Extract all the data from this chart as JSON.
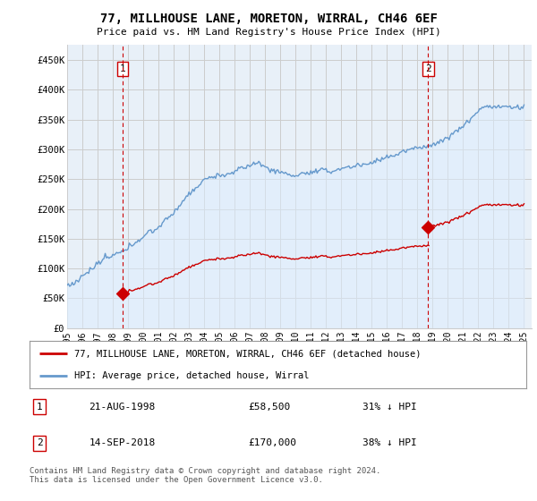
{
  "title": "77, MILLHOUSE LANE, MORETON, WIRRAL, CH46 6EF",
  "subtitle": "Price paid vs. HM Land Registry's House Price Index (HPI)",
  "ylabel_ticks": [
    "£0",
    "£50K",
    "£100K",
    "£150K",
    "£200K",
    "£250K",
    "£300K",
    "£350K",
    "£400K",
    "£450K"
  ],
  "ytick_values": [
    0,
    50000,
    100000,
    150000,
    200000,
    250000,
    300000,
    350000,
    400000,
    450000
  ],
  "ylim": [
    0,
    475000
  ],
  "xlim_start": 1995.0,
  "xlim_end": 2025.5,
  "purchase1_x": 1998.64,
  "purchase1_y": 58500,
  "purchase2_x": 2018.71,
  "purchase2_y": 170000,
  "legend_line1": "77, MILLHOUSE LANE, MORETON, WIRRAL, CH46 6EF (detached house)",
  "legend_line2": "HPI: Average price, detached house, Wirral",
  "table_row1": [
    "1",
    "21-AUG-1998",
    "£58,500",
    "31% ↓ HPI"
  ],
  "table_row2": [
    "2",
    "14-SEP-2018",
    "£170,000",
    "38% ↓ HPI"
  ],
  "footnote": "Contains HM Land Registry data © Crown copyright and database right 2024.\nThis data is licensed under the Open Government Licence v3.0.",
  "hpi_color": "#6699cc",
  "hpi_fill_color": "#ddeeff",
  "price_color": "#cc0000",
  "vline_color": "#cc0000",
  "point_color": "#cc0000",
  "background_color": "#ffffff",
  "chart_bg_color": "#e8f0f8",
  "grid_color": "#cccccc",
  "xtick_years": [
    1995,
    1996,
    1997,
    1998,
    1999,
    2000,
    2001,
    2002,
    2003,
    2004,
    2005,
    2006,
    2007,
    2008,
    2009,
    2010,
    2011,
    2012,
    2013,
    2014,
    2015,
    2016,
    2017,
    2018,
    2019,
    2020,
    2021,
    2022,
    2023,
    2024,
    2025
  ]
}
